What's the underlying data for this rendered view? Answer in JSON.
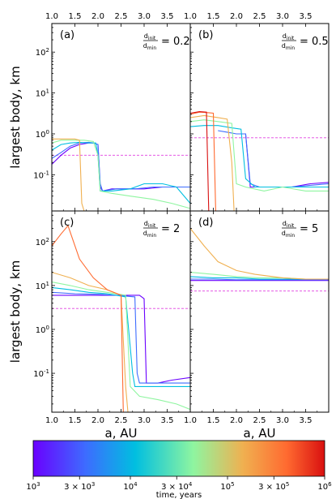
{
  "chart_data": {
    "type": "line",
    "shared_xlabel": "a, AU",
    "shared_ylabel": "largest body, km",
    "x_ticks": [
      "1.0",
      "1.5",
      "2.0",
      "2.5",
      "3.0",
      "3.5"
    ],
    "x_ticks_bottom": [
      "1.0",
      "1.5",
      "2.0",
      "2.5",
      "3.0",
      "3.5",
      "1.0",
      "1.5",
      "2.0",
      "2.5",
      "3.0",
      "3.5"
    ],
    "xlim": [
      1.0,
      4.0
    ],
    "y_scale": "log",
    "top_row_yticks": [
      "10^-1",
      "10^0",
      "10^1",
      "10^2"
    ],
    "bottom_row_yticks": [
      "10^-1",
      "10^0",
      "10^1",
      "10^2"
    ],
    "panels": [
      {
        "id": "a",
        "letter": "(a)",
        "ratio": "0.2",
        "ylim": [
          0.013,
          500
        ],
        "dashed_y": 0.3,
        "series": [
          {
            "time": 1000,
            "color": "#6a00ff",
            "x": [
              1.0,
              1.2,
              1.4,
              1.6,
              1.8,
              1.9,
              2.0,
              2.05,
              2.1,
              2.3,
              2.6,
              3.0,
              3.4,
              3.8,
              4.0
            ],
            "y": [
              0.18,
              0.3,
              0.45,
              0.55,
              0.6,
              0.6,
              0.55,
              0.05,
              0.04,
              0.045,
              0.045,
              0.045,
              0.05,
              0.05,
              0.05
            ]
          },
          {
            "time": 3000,
            "color": "#3d6cff",
            "x": [
              1.0,
              1.2,
              1.4,
              1.6,
              1.8,
              1.9,
              2.0,
              2.05,
              2.1,
              2.4,
              2.8,
              3.2,
              3.6,
              4.0
            ],
            "y": [
              0.25,
              0.35,
              0.5,
              0.6,
              0.62,
              0.6,
              0.55,
              0.06,
              0.04,
              0.045,
              0.045,
              0.05,
              0.05,
              0.05
            ]
          },
          {
            "time": 10000,
            "color": "#00bfe0",
            "x": [
              1.0,
              1.2,
              1.4,
              1.6,
              1.8,
              1.95,
              2.0,
              2.05,
              2.3,
              2.7,
              3.0,
              3.4,
              3.7,
              4.0
            ],
            "y": [
              0.4,
              0.55,
              0.6,
              0.62,
              0.6,
              0.6,
              0.3,
              0.04,
              0.04,
              0.045,
              0.06,
              0.06,
              0.05,
              0.02
            ]
          },
          {
            "time": 30000,
            "color": "#8ff5a0",
            "x": [
              1.0,
              1.2,
              1.5,
              1.7,
              1.9,
              2.0,
              2.05,
              2.3,
              2.7,
              3.2,
              3.6,
              4.0
            ],
            "y": [
              0.6,
              0.7,
              0.7,
              0.7,
              0.65,
              0.3,
              0.04,
              0.035,
              0.03,
              0.025,
              0.02,
              0.015
            ]
          },
          {
            "time": 100000,
            "color": "#f0b050",
            "x": [
              1.0,
              1.3,
              1.5,
              1.6,
              1.65,
              1.7
            ],
            "y": [
              0.75,
              0.75,
              0.75,
              0.7,
              0.02,
              0.013
            ]
          }
        ]
      },
      {
        "id": "b",
        "letter": "(b)",
        "ratio": "0.5",
        "ylim": [
          0.013,
          500
        ],
        "dashed_y": 0.8,
        "series": [
          {
            "time": 1000,
            "color": "#6a00ff",
            "x": [
              2.0,
              2.1,
              2.2,
              2.3,
              2.5,
              2.8,
              3.2,
              3.6,
              4.0
            ],
            "y": [
              1.0,
              1.0,
              1.0,
              0.05,
              0.05,
              0.05,
              0.05,
              0.06,
              0.065
            ]
          },
          {
            "time": 3000,
            "color": "#3d6cff",
            "x": [
              1.6,
              1.8,
              2.0,
              2.2,
              2.3,
              2.5,
              2.8,
              3.2,
              3.6,
              4.0
            ],
            "y": [
              1.2,
              1.1,
              1.0,
              1.0,
              0.06,
              0.05,
              0.05,
              0.05,
              0.055,
              0.06
            ]
          },
          {
            "time": 10000,
            "color": "#00bfe0",
            "x": [
              1.0,
              1.3,
              1.6,
              1.9,
              2.1,
              2.2,
              2.4,
              2.8,
              3.2,
              3.6,
              3.8,
              4.0
            ],
            "y": [
              1.5,
              1.6,
              1.6,
              1.4,
              1.3,
              0.08,
              0.05,
              0.05,
              0.05,
              0.05,
              0.05,
              0.05
            ]
          },
          {
            "time": 30000,
            "color": "#8ff5a0",
            "x": [
              1.0,
              1.3,
              1.6,
              1.9,
              2.0,
              2.2,
              2.6,
              3.0,
              3.5,
              4.0
            ],
            "y": [
              2.0,
              2.2,
              2.0,
              1.8,
              0.06,
              0.05,
              0.04,
              0.05,
              0.04,
              0.04
            ]
          },
          {
            "time": 100000,
            "color": "#f0b050",
            "x": [
              1.0,
              1.3,
              1.6,
              1.8,
              1.9,
              1.95
            ],
            "y": [
              2.5,
              2.8,
              2.5,
              2.3,
              0.2,
              0.013
            ]
          },
          {
            "time": 300000,
            "color": "#ff6a30",
            "x": [
              1.0,
              1.2,
              1.4,
              1.5,
              1.55
            ],
            "y": [
              3.0,
              3.4,
              3.3,
              3.2,
              0.013
            ]
          },
          {
            "time": 1000000,
            "color": "#d91010",
            "x": [
              1.0,
              1.2,
              1.35,
              1.4
            ],
            "y": [
              3.2,
              3.5,
              3.4,
              0.013
            ]
          }
        ]
      },
      {
        "id": "c",
        "letter": "(c)",
        "ratio": "2",
        "ylim": [
          0.013,
          500
        ],
        "dashed_y": 3.0,
        "series": [
          {
            "time": 1000,
            "color": "#6a00ff",
            "x": [
              1.0,
              1.5,
              2.0,
              2.5,
              2.9,
              3.0,
              3.05,
              3.3,
              3.6,
              4.0
            ],
            "y": [
              6,
              6,
              6,
              6,
              6,
              5,
              0.06,
              0.06,
              0.07,
              0.08
            ]
          },
          {
            "time": 3000,
            "color": "#3d6cff",
            "x": [
              1.0,
              1.5,
              2.0,
              2.4,
              2.8,
              2.85,
              2.9,
              3.3,
              3.6,
              4.0
            ],
            "y": [
              7,
              6.5,
              6.3,
              6,
              5.5,
              0.1,
              0.06,
              0.06,
              0.06,
              0.06
            ]
          },
          {
            "time": 10000,
            "color": "#00bfe0",
            "x": [
              1.0,
              1.4,
              1.8,
              2.2,
              2.6,
              2.75,
              2.8,
              3.2,
              3.6,
              4.0
            ],
            "y": [
              9,
              8,
              7,
              6.5,
              5.5,
              0.1,
              0.05,
              0.05,
              0.05,
              0.05
            ]
          },
          {
            "time": 30000,
            "color": "#8ff5a0",
            "x": [
              1.0,
              1.4,
              1.8,
              2.2,
              2.6,
              2.7,
              2.9,
              3.3,
              3.7,
              4.0
            ],
            "y": [
              12,
              10,
              8,
              7,
              6,
              0.05,
              0.03,
              0.025,
              0.02,
              0.015
            ]
          },
          {
            "time": 100000,
            "color": "#f0b050",
            "x": [
              1.0,
              1.4,
              1.8,
              2.2,
              2.5,
              2.6,
              2.65
            ],
            "y": [
              20,
              15,
              10,
              8,
              6,
              0.05,
              0.013
            ]
          },
          {
            "time": 300000,
            "color": "#ff6a30",
            "x": [
              1.0,
              1.2,
              1.35,
              1.6,
              1.9,
              2.2,
              2.5,
              2.55
            ],
            "y": [
              80,
              150,
              230,
              40,
              15,
              8,
              6,
              0.013
            ]
          }
        ]
      },
      {
        "id": "d",
        "letter": "(d)",
        "ratio": "5",
        "ylim": [
          0.013,
          500
        ],
        "dashed_y": 7.5,
        "series": [
          {
            "time": 1000,
            "color": "#6a00ff",
            "x": [
              1.0,
              1.5,
              2.0,
              2.5,
              3.0,
              3.5,
              4.0
            ],
            "y": [
              13,
              13,
              13,
              13,
              13,
              13,
              13
            ]
          },
          {
            "time": 3000,
            "color": "#3d6cff",
            "x": [
              1.0,
              1.5,
              2.0,
              2.5,
              3.0,
              3.5,
              4.0
            ],
            "y": [
              14,
              14,
              13.5,
              13.5,
              13.5,
              13.5,
              13.5
            ]
          },
          {
            "time": 10000,
            "color": "#00bfe0",
            "x": [
              1.0,
              1.5,
              2.0,
              2.5,
              3.0,
              3.5,
              4.0
            ],
            "y": [
              16,
              15,
              15,
              14,
              14,
              14,
              14
            ]
          },
          {
            "time": 30000,
            "color": "#8ff5a0",
            "x": [
              1.0,
              1.5,
              2.0,
              2.5,
              3.0,
              3.5,
              4.0
            ],
            "y": [
              20,
              18,
              16,
              15,
              15,
              14,
              14
            ]
          },
          {
            "time": 100000,
            "color": "#f0b050",
            "x": [
              1.0,
              1.3,
              1.6,
              2.0,
              2.4,
              3.0,
              3.5,
              4.0
            ],
            "y": [
              200,
              80,
              35,
              22,
              18,
              15,
              14,
              14
            ]
          }
        ]
      }
    ],
    "colorbar": {
      "label": "time, years",
      "scale": "log",
      "range": [
        1000,
        1000000
      ],
      "ticks": [
        {
          "value": 1000,
          "label": "10^3"
        },
        {
          "value": 3000,
          "label": "3 × 10^3"
        },
        {
          "value": 10000,
          "label": "10^4"
        },
        {
          "value": 30000,
          "label": "3 × 10^4"
        },
        {
          "value": 100000,
          "label": "10^5"
        },
        {
          "value": 300000,
          "label": "3 × 10^5"
        },
        {
          "value": 1000000,
          "label": "10^6"
        }
      ],
      "colors": [
        "#6a00ff",
        "#3d6cff",
        "#00bfe0",
        "#8ff5a0",
        "#f0b050",
        "#ff6a30",
        "#d91010"
      ]
    },
    "ratio_label": {
      "num": "d_init",
      "den": "d_min"
    }
  }
}
